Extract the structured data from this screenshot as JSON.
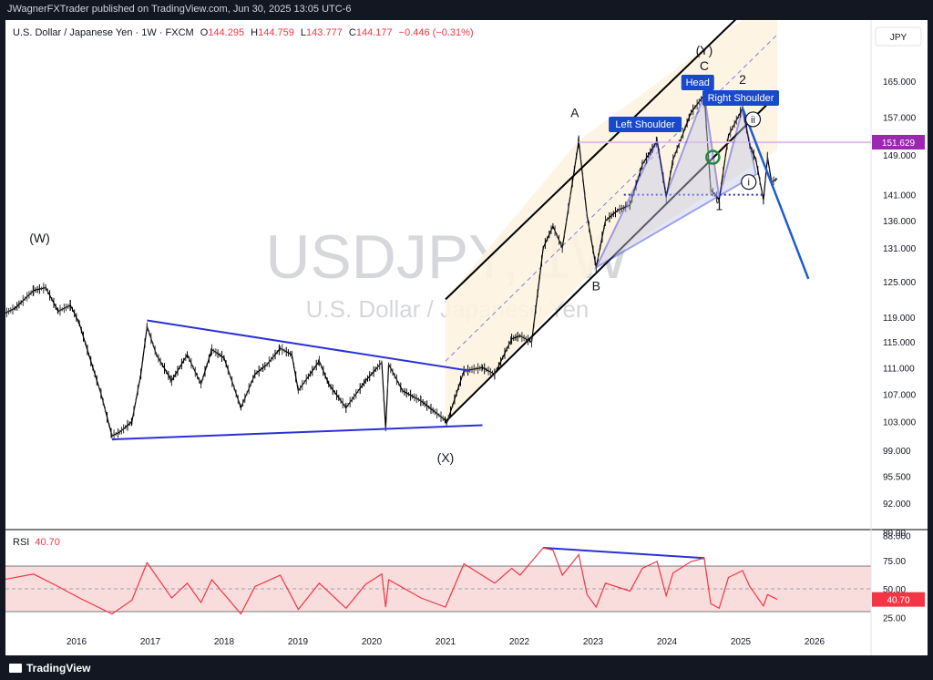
{
  "header": {
    "published_by": "JWagnerFXTrader published on TradingView.com, Jun 30, 2025 13:05 UTC-6"
  },
  "symbol_line": {
    "name": "U.S. Dollar / Japanese Yen · 1W · FXCM",
    "o_label": "O",
    "o": "144.295",
    "h_label": "H",
    "h": "144.759",
    "l_label": "L",
    "l": "143.777",
    "c_label": "C",
    "c": "144.177",
    "change": "−0.446 (−0.31%)",
    "change_color": "#f23645"
  },
  "currency_button": "JPY",
  "watermark": {
    "ticker": "USDJPY, 1W",
    "name": "U.S. Dollar / Japanese Yen"
  },
  "footer": {
    "brand": "TradingView"
  },
  "chart_data": {
    "type": "line",
    "title": "U.S. Dollar / Japanese Yen · 1W · FXCM",
    "price_axis": [
      "165.000",
      "157.000",
      "149.000",
      "141.000",
      "136.000",
      "131.000",
      "125.000",
      "119.000",
      "115.000",
      "111.000",
      "107.000",
      "103.000",
      "99.000",
      "95.500",
      "92.000",
      "88.000"
    ],
    "price_scale": "log",
    "x_ticks": [
      "2016",
      "2017",
      "2018",
      "2019",
      "2020",
      "2021",
      "2022",
      "2023",
      "2024",
      "2025",
      "2026"
    ],
    "last_price_label": "151.629",
    "last_price_color": "#9c27b0",
    "series": [
      {
        "name": "USDJPY weekly close (approx.)",
        "color": "#000000",
        "points": [
          [
            "2015-01-01",
            119.5
          ],
          [
            "2015-03-01",
            120.5
          ],
          [
            "2015-06-01",
            123.5
          ],
          [
            "2015-08-01",
            124.0
          ],
          [
            "2015-10-01",
            120.0
          ],
          [
            "2015-12-01",
            121.0
          ],
          [
            "2016-01-15",
            118.0
          ],
          [
            "2016-03-01",
            113.0
          ],
          [
            "2016-05-01",
            107.0
          ],
          [
            "2016-06-24",
            101.0
          ],
          [
            "2016-08-01",
            101.5
          ],
          [
            "2016-10-01",
            103.0
          ],
          [
            "2016-11-15",
            110.0
          ],
          [
            "2016-12-15",
            117.5
          ],
          [
            "2017-02-01",
            113.0
          ],
          [
            "2017-04-15",
            109.0
          ],
          [
            "2017-07-01",
            113.0
          ],
          [
            "2017-09-08",
            108.5
          ],
          [
            "2017-11-01",
            113.8
          ],
          [
            "2017-12-31",
            112.5
          ],
          [
            "2018-03-23",
            105.0
          ],
          [
            "2018-06-01",
            110.0
          ],
          [
            "2018-08-01",
            111.5
          ],
          [
            "2018-10-05",
            114.0
          ],
          [
            "2018-12-01",
            113.0
          ],
          [
            "2019-01-03",
            107.5
          ],
          [
            "2019-04-15",
            112.0
          ],
          [
            "2019-06-01",
            108.5
          ],
          [
            "2019-08-26",
            105.0
          ],
          [
            "2019-12-01",
            109.0
          ],
          [
            "2020-02-20",
            111.8
          ],
          [
            "2020-03-09",
            102.0
          ],
          [
            "2020-03-24",
            111.5
          ],
          [
            "2020-06-01",
            107.5
          ],
          [
            "2020-09-01",
            106.0
          ],
          [
            "2020-12-31",
            103.2
          ],
          [
            "2021-01-06",
            102.7
          ],
          [
            "2021-03-31",
            110.5
          ],
          [
            "2021-07-01",
            111.0
          ],
          [
            "2021-09-01",
            110.0
          ],
          [
            "2021-11-24",
            115.5
          ],
          [
            "2022-01-04",
            116.0
          ],
          [
            "2022-03-01",
            115.0
          ],
          [
            "2022-04-28",
            131.0
          ],
          [
            "2022-06-15",
            135.0
          ],
          [
            "2022-08-01",
            131.0
          ],
          [
            "2022-10-21",
            151.9
          ],
          [
            "2022-12-01",
            137.0
          ],
          [
            "2023-01-16",
            127.5
          ],
          [
            "2023-03-01",
            136.0
          ],
          [
            "2023-05-01",
            138.0
          ],
          [
            "2023-07-01",
            139.0
          ],
          [
            "2023-09-01",
            147.0
          ],
          [
            "2023-11-13",
            151.9
          ],
          [
            "2023-12-28",
            140.5
          ],
          [
            "2024-02-01",
            148.0
          ],
          [
            "2024-04-29",
            158.0
          ],
          [
            "2024-07-03",
            161.9
          ],
          [
            "2024-08-05",
            142.0
          ],
          [
            "2024-09-16",
            140.0
          ],
          [
            "2024-11-01",
            153.0
          ],
          [
            "2025-01-10",
            158.9
          ],
          [
            "2025-02-15",
            151.0
          ],
          [
            "2025-03-15",
            148.0
          ],
          [
            "2025-04-22",
            140.0
          ],
          [
            "2025-05-12",
            148.5
          ],
          [
            "2025-06-01",
            143.5
          ],
          [
            "2025-06-30",
            144.177
          ]
        ]
      }
    ],
    "rsi": {
      "label": "RSI",
      "value_label": "40.70",
      "color": "#f23645",
      "axis": [
        "80.00",
        "75.00",
        "50.00",
        "25.00"
      ],
      "upper_band": 70,
      "lower_band": 30,
      "points": [
        [
          "2015-01-01",
          58
        ],
        [
          "2015-06-01",
          63
        ],
        [
          "2015-10-01",
          52
        ],
        [
          "2016-01-15",
          42
        ],
        [
          "2016-06-24",
          28
        ],
        [
          "2016-10-01",
          40
        ],
        [
          "2016-12-15",
          73
        ],
        [
          "2017-04-15",
          42
        ],
        [
          "2017-07-01",
          55
        ],
        [
          "2017-09-08",
          38
        ],
        [
          "2017-11-01",
          58
        ],
        [
          "2018-03-23",
          28
        ],
        [
          "2018-06-01",
          52
        ],
        [
          "2018-10-05",
          62
        ],
        [
          "2019-01-03",
          32
        ],
        [
          "2019-04-15",
          55
        ],
        [
          "2019-08-26",
          33
        ],
        [
          "2019-12-01",
          54
        ],
        [
          "2020-02-20",
          63
        ],
        [
          "2020-03-09",
          34
        ],
        [
          "2020-03-24",
          58
        ],
        [
          "2020-09-01",
          42
        ],
        [
          "2020-12-31",
          34
        ],
        [
          "2021-03-31",
          72
        ],
        [
          "2021-09-01",
          55
        ],
        [
          "2021-11-24",
          68
        ],
        [
          "2022-01-04",
          62
        ],
        [
          "2022-04-28",
          86
        ],
        [
          "2022-06-15",
          84
        ],
        [
          "2022-08-01",
          62
        ],
        [
          "2022-10-21",
          80
        ],
        [
          "2022-12-01",
          45
        ],
        [
          "2023-01-16",
          34
        ],
        [
          "2023-03-01",
          55
        ],
        [
          "2023-07-01",
          48
        ],
        [
          "2023-09-01",
          68
        ],
        [
          "2023-11-13",
          74
        ],
        [
          "2023-12-28",
          44
        ],
        [
          "2024-02-01",
          64
        ],
        [
          "2024-04-29",
          74
        ],
        [
          "2024-07-03",
          77
        ],
        [
          "2024-08-05",
          37
        ],
        [
          "2024-09-16",
          33
        ],
        [
          "2024-11-01",
          60
        ],
        [
          "2025-01-10",
          66
        ],
        [
          "2025-02-15",
          52
        ],
        [
          "2025-04-22",
          35
        ],
        [
          "2025-05-12",
          45
        ],
        [
          "2025-06-30",
          40.7
        ]
      ]
    }
  },
  "annotations": {
    "wave_labels": {
      "W": "(W)",
      "X": "(X)",
      "Y": "(Y)",
      "A": "A",
      "B": "B",
      "C": "C",
      "one": "1",
      "two": "2",
      "i": "i",
      "ii": "ii"
    },
    "pattern_labels": {
      "left_shoulder": "Left Shoulder",
      "head": "Head",
      "right_shoulder": "Right Shoulder"
    },
    "label_color": "#1848cc",
    "trendline_color": "#2b31d4"
  }
}
